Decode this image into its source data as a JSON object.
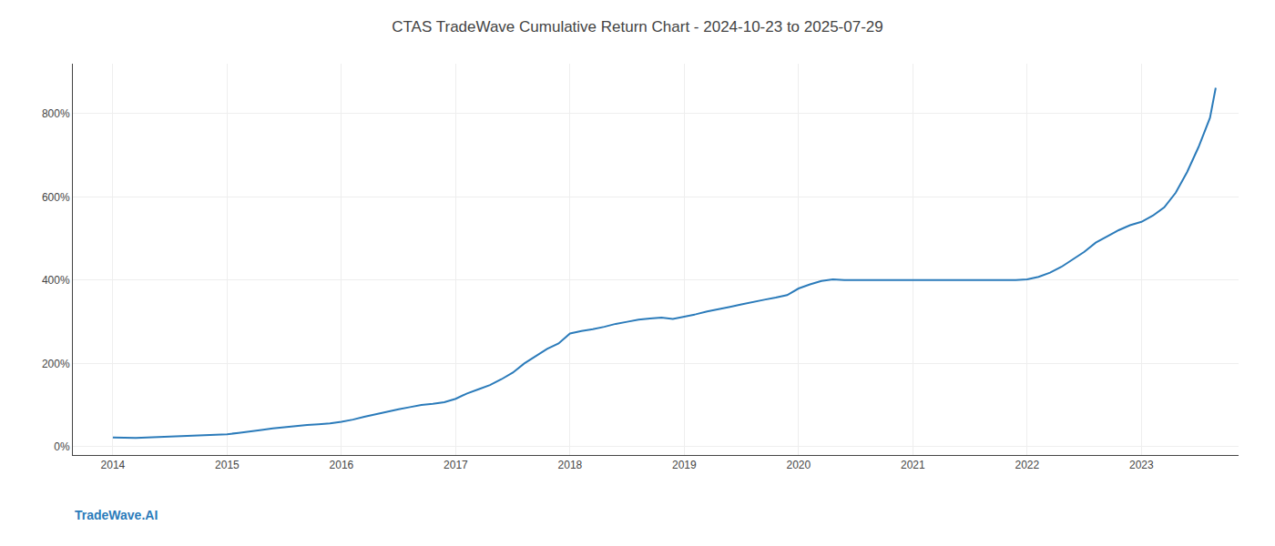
{
  "chart_data": {
    "type": "line",
    "title": "CTAS TradeWave Cumulative Return Chart - 2024-10-23 to 2025-07-29",
    "annotations": [
      "TradeWave.AI"
    ],
    "color": "#2b7bba",
    "grid": true,
    "x": [
      2014.0,
      2014.1,
      2014.2,
      2014.3,
      2014.4,
      2014.5,
      2014.6,
      2014.7,
      2014.8,
      2014.9,
      2015.0,
      2015.1,
      2015.2,
      2015.3,
      2015.4,
      2015.5,
      2015.6,
      2015.7,
      2015.8,
      2015.9,
      2016.0,
      2016.1,
      2016.2,
      2016.3,
      2016.4,
      2016.5,
      2016.6,
      2016.7,
      2016.8,
      2016.9,
      2017.0,
      2017.1,
      2017.2,
      2017.3,
      2017.4,
      2017.5,
      2017.6,
      2017.7,
      2017.8,
      2017.9,
      2018.0,
      2018.1,
      2018.2,
      2018.3,
      2018.4,
      2018.5,
      2018.6,
      2018.7,
      2018.8,
      2018.9,
      2019.0,
      2019.1,
      2019.2,
      2019.3,
      2019.4,
      2019.5,
      2019.6,
      2019.7,
      2019.8,
      2019.9,
      2020.0,
      2020.1,
      2020.2,
      2020.3,
      2020.4,
      2020.5,
      2020.6,
      2020.7,
      2020.8,
      2020.9,
      2021.0,
      2021.1,
      2021.2,
      2021.3,
      2021.4,
      2021.5,
      2021.6,
      2021.7,
      2021.8,
      2021.9,
      2022.0,
      2022.1,
      2022.2,
      2022.3,
      2022.4,
      2022.5,
      2022.6,
      2022.7,
      2022.8,
      2022.9,
      2023.0,
      2023.1,
      2023.2,
      2023.3,
      2023.4,
      2023.5,
      2023.6,
      2023.65
    ],
    "values": [
      22,
      21,
      21,
      22,
      23,
      24,
      25,
      26,
      27,
      28,
      30,
      33,
      36,
      40,
      44,
      47,
      50,
      52,
      54,
      56,
      60,
      65,
      72,
      78,
      85,
      90,
      95,
      100,
      103,
      107,
      115,
      128,
      138,
      148,
      162,
      178,
      200,
      218,
      235,
      248,
      272,
      278,
      282,
      288,
      295,
      300,
      305,
      308,
      310,
      307,
      312,
      318,
      325,
      330,
      336,
      342,
      348,
      353,
      358,
      364,
      380,
      390,
      398,
      402,
      400,
      400,
      400,
      400,
      400,
      400,
      400,
      400,
      400,
      400,
      400,
      400,
      400,
      400,
      400,
      400,
      402,
      408,
      418,
      432,
      450,
      468,
      490,
      505,
      520,
      532,
      540,
      555,
      575,
      610,
      660,
      720,
      790,
      862
    ],
    "xlim": [
      2013.65,
      2023.85
    ],
    "xticks": [
      2014,
      2015,
      2016,
      2017,
      2018,
      2019,
      2020,
      2021,
      2022,
      2023
    ],
    "ylim": [
      -20,
      920
    ],
    "yticks": [
      {
        "value": 0,
        "label": "0%"
      },
      {
        "value": 200,
        "label": "200%"
      },
      {
        "value": 400,
        "label": "400%"
      },
      {
        "value": 600,
        "label": "600%"
      },
      {
        "value": 800,
        "label": "800%"
      }
    ]
  }
}
